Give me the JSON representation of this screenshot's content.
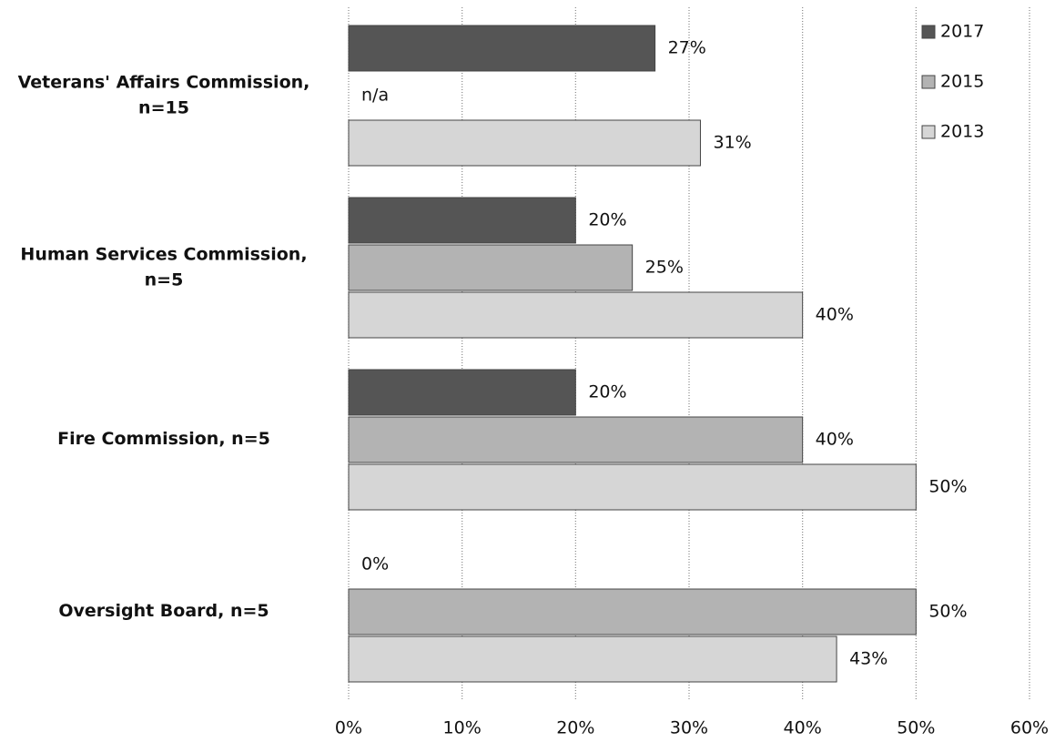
{
  "chart_data": {
    "type": "hbar",
    "categories": [
      "Veterans' Affairs Commission, n=15",
      "Human Services Commission, n=5",
      "Fire Commission, n=5",
      "Oversight Board, n=5"
    ],
    "series": [
      {
        "name": "2017",
        "color": "#555555",
        "values": [
          27,
          20,
          20,
          0
        ],
        "value_labels": [
          "27%",
          "20%",
          "20%",
          "0%"
        ]
      },
      {
        "name": "2015",
        "color": "#b3b3b3",
        "values": [
          null,
          25,
          40,
          50
        ],
        "value_labels": [
          "n/a",
          "25%",
          "40%",
          "50%"
        ]
      },
      {
        "name": "2013",
        "color": "#d6d6d6",
        "values": [
          31,
          40,
          50,
          43
        ],
        "value_labels": [
          "31%",
          "40%",
          "50%",
          "43%"
        ]
      }
    ],
    "xlim": [
      0,
      60
    ],
    "xticks": [
      {
        "value": 0,
        "label": "0%"
      },
      {
        "value": 10,
        "label": "10%"
      },
      {
        "value": 20,
        "label": "20%"
      },
      {
        "value": 30,
        "label": "30%"
      },
      {
        "value": 40,
        "label": "40%"
      },
      {
        "value": 50,
        "label": "50%"
      },
      {
        "value": 60,
        "label": "60%"
      }
    ],
    "grid": true,
    "legend": "top-right"
  }
}
